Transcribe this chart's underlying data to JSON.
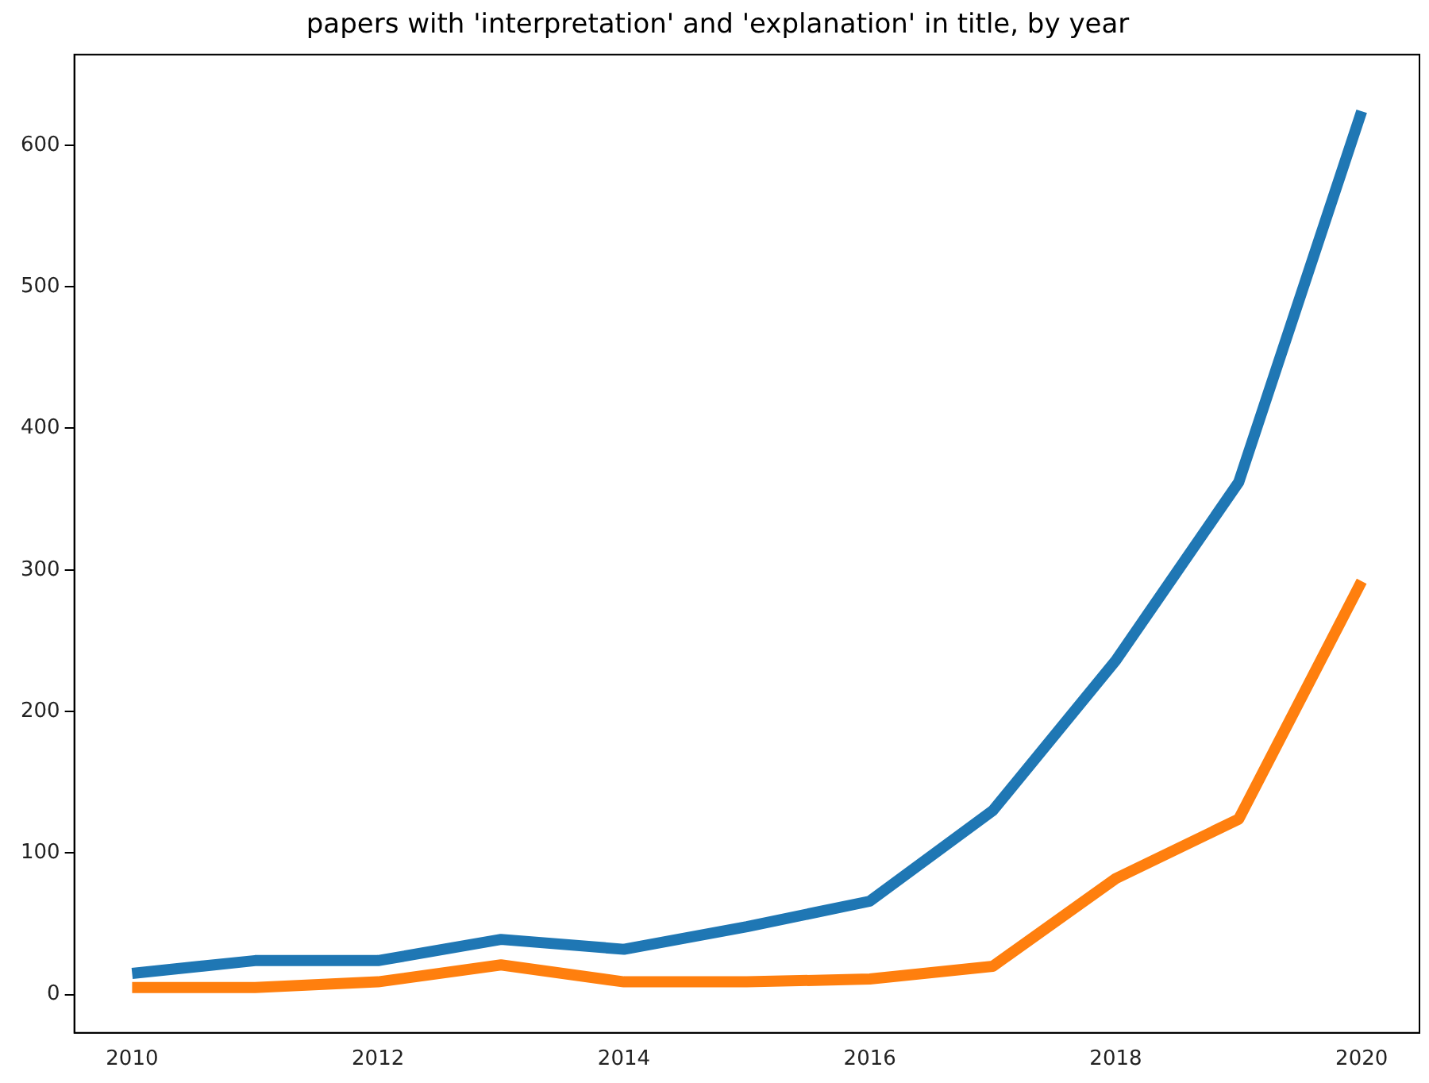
{
  "chart_data": {
    "type": "line",
    "title": "papers with 'interpretation' and 'explanation' in title, by year",
    "x": [
      2010,
      2011,
      2012,
      2013,
      2014,
      2015,
      2016,
      2017,
      2018,
      2019,
      2020
    ],
    "series": [
      {
        "color": "#1f77b4",
        "values": [
          15,
          24,
          24,
          39,
          32,
          48,
          66,
          130,
          236,
          362,
          624
        ]
      },
      {
        "color": "#ff7f0e",
        "values": [
          5,
          5,
          9,
          21,
          9,
          9,
          11,
          20,
          82,
          124,
          292
        ]
      }
    ],
    "xlim": [
      2009.53,
      2020.47
    ],
    "xticks": [
      2010,
      2012,
      2014,
      2016,
      2018,
      2020
    ],
    "ylim": [
      -27,
      664
    ],
    "yticks": [
      0,
      100,
      200,
      300,
      400,
      500,
      600
    ],
    "grid": false,
    "legend": false,
    "marker": "none",
    "line_style": "solid"
  }
}
